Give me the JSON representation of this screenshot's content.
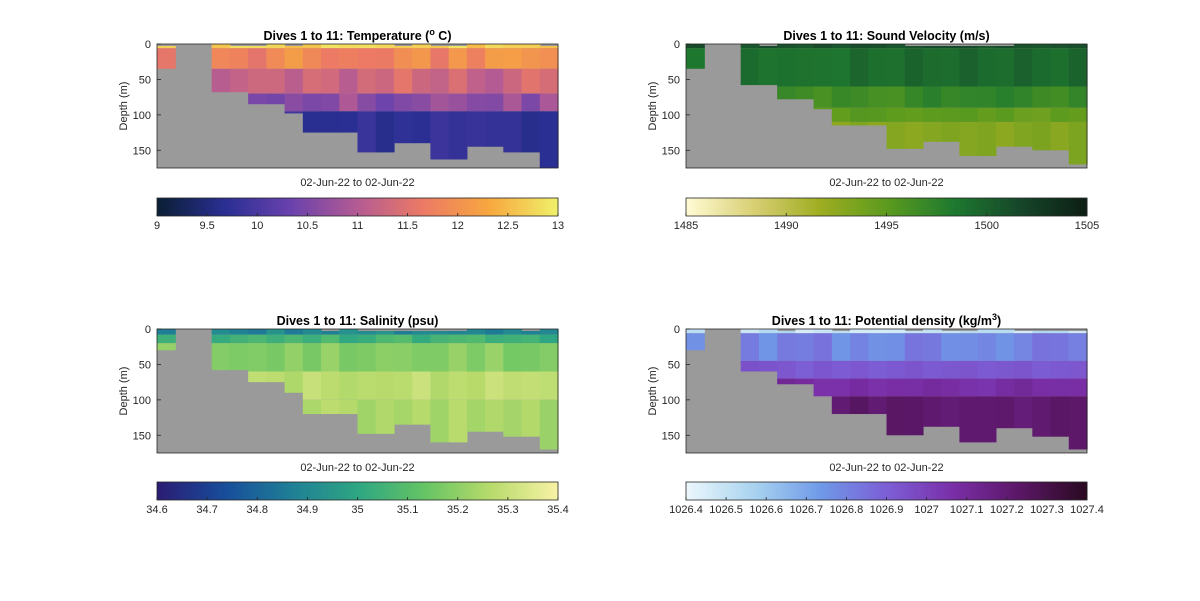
{
  "chart_data": [
    {
      "type": "heatmap",
      "title": "Dives 1 to 11: Temperature (°C)",
      "title_parts": [
        "Dives 1 to 11: Temperature (",
        "o",
        " C)"
      ],
      "xlabel": "02-Jun-22 to 02-Jun-22",
      "ylabel": "Depth (m)",
      "ylim": [
        0,
        175
      ],
      "yticks": [
        "0",
        "50",
        "100",
        "150"
      ],
      "colorbar": {
        "colors": [
          "#0b1f36",
          "#2a2f93",
          "#6a42ad",
          "#b45b93",
          "#ec7a64",
          "#f7a83f",
          "#f0ef6a"
        ],
        "ticks": [
          "9",
          "9.5",
          "10",
          "10.5",
          "11",
          "11.5",
          "12",
          "12.5",
          "13"
        ]
      },
      "background_color": "#9a9a9a",
      "profile_bottoms_m": [
        35,
        0,
        0,
        68,
        68,
        85,
        85,
        98,
        125,
        125,
        125,
        153,
        153,
        140,
        140,
        163,
        163,
        145,
        145,
        153,
        153,
        175
      ],
      "layers": [
        {
          "top_m": 0,
          "bottom_m": 6,
          "value_range": [
            12.5,
            12.9
          ]
        },
        {
          "top_m": 6,
          "bottom_m": 35,
          "value_range": [
            11.5,
            12.2
          ]
        },
        {
          "top_m": 35,
          "bottom_m": 70,
          "value_range": [
            11.0,
            11.6
          ]
        },
        {
          "top_m": 70,
          "bottom_m": 95,
          "value_range": [
            10.3,
            11.0
          ]
        },
        {
          "top_m": 95,
          "bottom_m": 175,
          "value_range": [
            9.6,
            9.9
          ]
        }
      ]
    },
    {
      "type": "heatmap",
      "title": "Dives 1 to 11: Sound Velocity (m/s)",
      "title_parts": [
        "Dives 1 to 11: Sound Velocity (m/s)",
        "",
        ""
      ],
      "xlabel": "02-Jun-22 to 02-Jun-22",
      "ylabel": "Depth (m)",
      "ylim": [
        0,
        175
      ],
      "yticks": [
        "0",
        "50",
        "100",
        "150"
      ],
      "colorbar": {
        "colors": [
          "#fffad2",
          "#d8cf74",
          "#9ead21",
          "#5c9b1e",
          "#1f7a2f",
          "#16472a",
          "#0d1f14"
        ],
        "ticks": [
          "1485",
          "1490",
          "1495",
          "1500",
          "1505"
        ]
      },
      "background_color": "#9a9a9a",
      "profile_bottoms_m": [
        35,
        0,
        0,
        58,
        58,
        78,
        78,
        92,
        115,
        115,
        115,
        148,
        148,
        138,
        138,
        158,
        158,
        145,
        145,
        150,
        150,
        170
      ],
      "layers": [
        {
          "top_m": 0,
          "bottom_m": 6,
          "value_range": [
            1500.5,
            1501.5
          ]
        },
        {
          "top_m": 6,
          "bottom_m": 60,
          "value_range": [
            1498.5,
            1500
          ]
        },
        {
          "top_m": 60,
          "bottom_m": 90,
          "value_range": [
            1496,
            1498
          ]
        },
        {
          "top_m": 90,
          "bottom_m": 110,
          "value_range": [
            1494,
            1495.5
          ]
        },
        {
          "top_m": 110,
          "bottom_m": 175,
          "value_range": [
            1492.5,
            1493.5
          ]
        }
      ]
    },
    {
      "type": "heatmap",
      "title": "Dives 1 to 11: Salinity (psu)",
      "title_parts": [
        "Dives 1 to 11: Salinity (psu)",
        "",
        ""
      ],
      "xlabel": "02-Jun-22 to 02-Jun-22",
      "ylabel": "Depth (m)",
      "ylim": [
        0,
        175
      ],
      "yticks": [
        "0",
        "50",
        "100",
        "150"
      ],
      "colorbar": {
        "colors": [
          "#2b1d74",
          "#174d9b",
          "#1f7f96",
          "#2ea683",
          "#64c464",
          "#b7da6b",
          "#f6f2a4"
        ],
        "ticks": [
          "34.6",
          "34.7",
          "34.8",
          "34.9",
          "35",
          "35.1",
          "35.2",
          "35.3",
          "35.4"
        ]
      },
      "background_color": "#9a9a9a",
      "profile_bottoms_m": [
        30,
        0,
        0,
        58,
        58,
        75,
        75,
        90,
        120,
        120,
        120,
        148,
        148,
        135,
        135,
        160,
        160,
        145,
        145,
        152,
        152,
        170
      ],
      "layers": [
        {
          "top_m": 0,
          "bottom_m": 8,
          "value_range": [
            34.85,
            34.95
          ]
        },
        {
          "top_m": 8,
          "bottom_m": 20,
          "value_range": [
            35.0,
            35.1
          ]
        },
        {
          "top_m": 20,
          "bottom_m": 60,
          "value_range": [
            35.15,
            35.22
          ]
        },
        {
          "top_m": 60,
          "bottom_m": 100,
          "value_range": [
            35.25,
            35.32
          ]
        },
        {
          "top_m": 100,
          "bottom_m": 175,
          "value_range": [
            35.22,
            35.28
          ]
        }
      ]
    },
    {
      "type": "heatmap",
      "title": "Dives 1 to 11: Potential density (kg/m3)",
      "title_parts": [
        "Dives 1 to 11: Potential density (kg/m",
        "3",
        ")"
      ],
      "xlabel": "02-Jun-22 to 02-Jun-22",
      "ylabel": "Depth (m)",
      "ylim": [
        0,
        175
      ],
      "yticks": [
        "0",
        "50",
        "100",
        "150"
      ],
      "colorbar": {
        "colors": [
          "#eaf6fb",
          "#a9d3ef",
          "#6f9ae8",
          "#7c5fd6",
          "#7a2fa8",
          "#5b1766",
          "#2b0a22"
        ],
        "ticks": [
          "1026.4",
          "1026.5",
          "1026.6",
          "1026.7",
          "1026.8",
          "1026.9",
          "1027",
          "1027.1",
          "1027.2",
          "1027.3",
          "1027.4"
        ]
      },
      "background_color": "#9a9a9a",
      "profile_bottoms_m": [
        30,
        0,
        0,
        60,
        60,
        78,
        78,
        95,
        120,
        120,
        120,
        150,
        150,
        138,
        138,
        160,
        160,
        140,
        140,
        152,
        152,
        170
      ],
      "layers": [
        {
          "top_m": 0,
          "bottom_m": 6,
          "value_range": [
            1026.45,
            1026.55
          ]
        },
        {
          "top_m": 6,
          "bottom_m": 45,
          "value_range": [
            1026.75,
            1026.85
          ]
        },
        {
          "top_m": 45,
          "bottom_m": 70,
          "value_range": [
            1026.9,
            1026.95
          ]
        },
        {
          "top_m": 70,
          "bottom_m": 95,
          "value_range": [
            1027.05,
            1027.12
          ]
        },
        {
          "top_m": 95,
          "bottom_m": 175,
          "value_range": [
            1027.18,
            1027.25
          ]
        }
      ]
    }
  ]
}
